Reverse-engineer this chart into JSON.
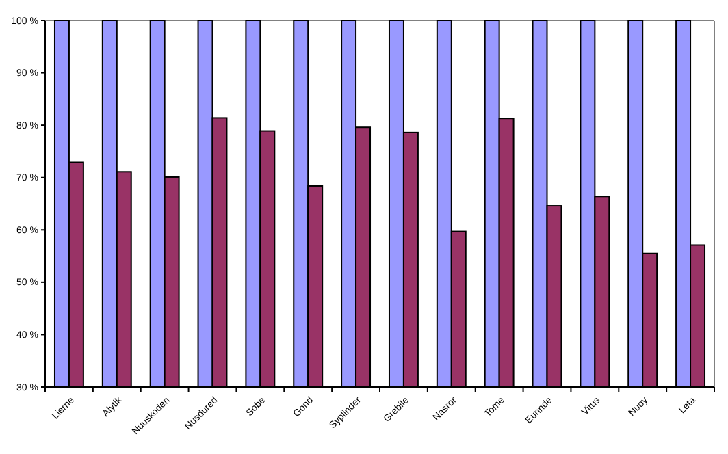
{
  "chart_data": {
    "type": "bar",
    "categories": [
      "Lierne",
      "Alytik",
      "Nuuskoden",
      "Nusdured",
      "Sobe",
      "Gond",
      "Syplinder",
      "Grebile",
      "Nasror",
      "Tome",
      "Eunnde",
      "Vitus",
      "Nuoy",
      "Leta"
    ],
    "series": [
      {
        "color": "#9999ff",
        "values": [
          100,
          100,
          100,
          100,
          100,
          100,
          100,
          100,
          100,
          100,
          100,
          100,
          100,
          100
        ]
      },
      {
        "color": "#993366",
        "values": [
          72.9,
          71.1,
          70.1,
          81.4,
          78.9,
          68.4,
          79.6,
          78.6,
          59.7,
          81.3,
          64.6,
          66.4,
          55.5,
          57.1
        ]
      }
    ],
    "ylim": [
      30,
      100
    ],
    "yticks": [
      {
        "value": 30,
        "label": "30 %"
      },
      {
        "value": 40,
        "label": "40 %"
      },
      {
        "value": 50,
        "label": "50 %"
      },
      {
        "value": 60,
        "label": "60 %"
      },
      {
        "value": 70,
        "label": "70 %"
      },
      {
        "value": 80,
        "label": "80 %"
      },
      {
        "value": 90,
        "label": "90 %"
      },
      {
        "value": 100,
        "label": "100 %"
      }
    ],
    "grid": false
  }
}
